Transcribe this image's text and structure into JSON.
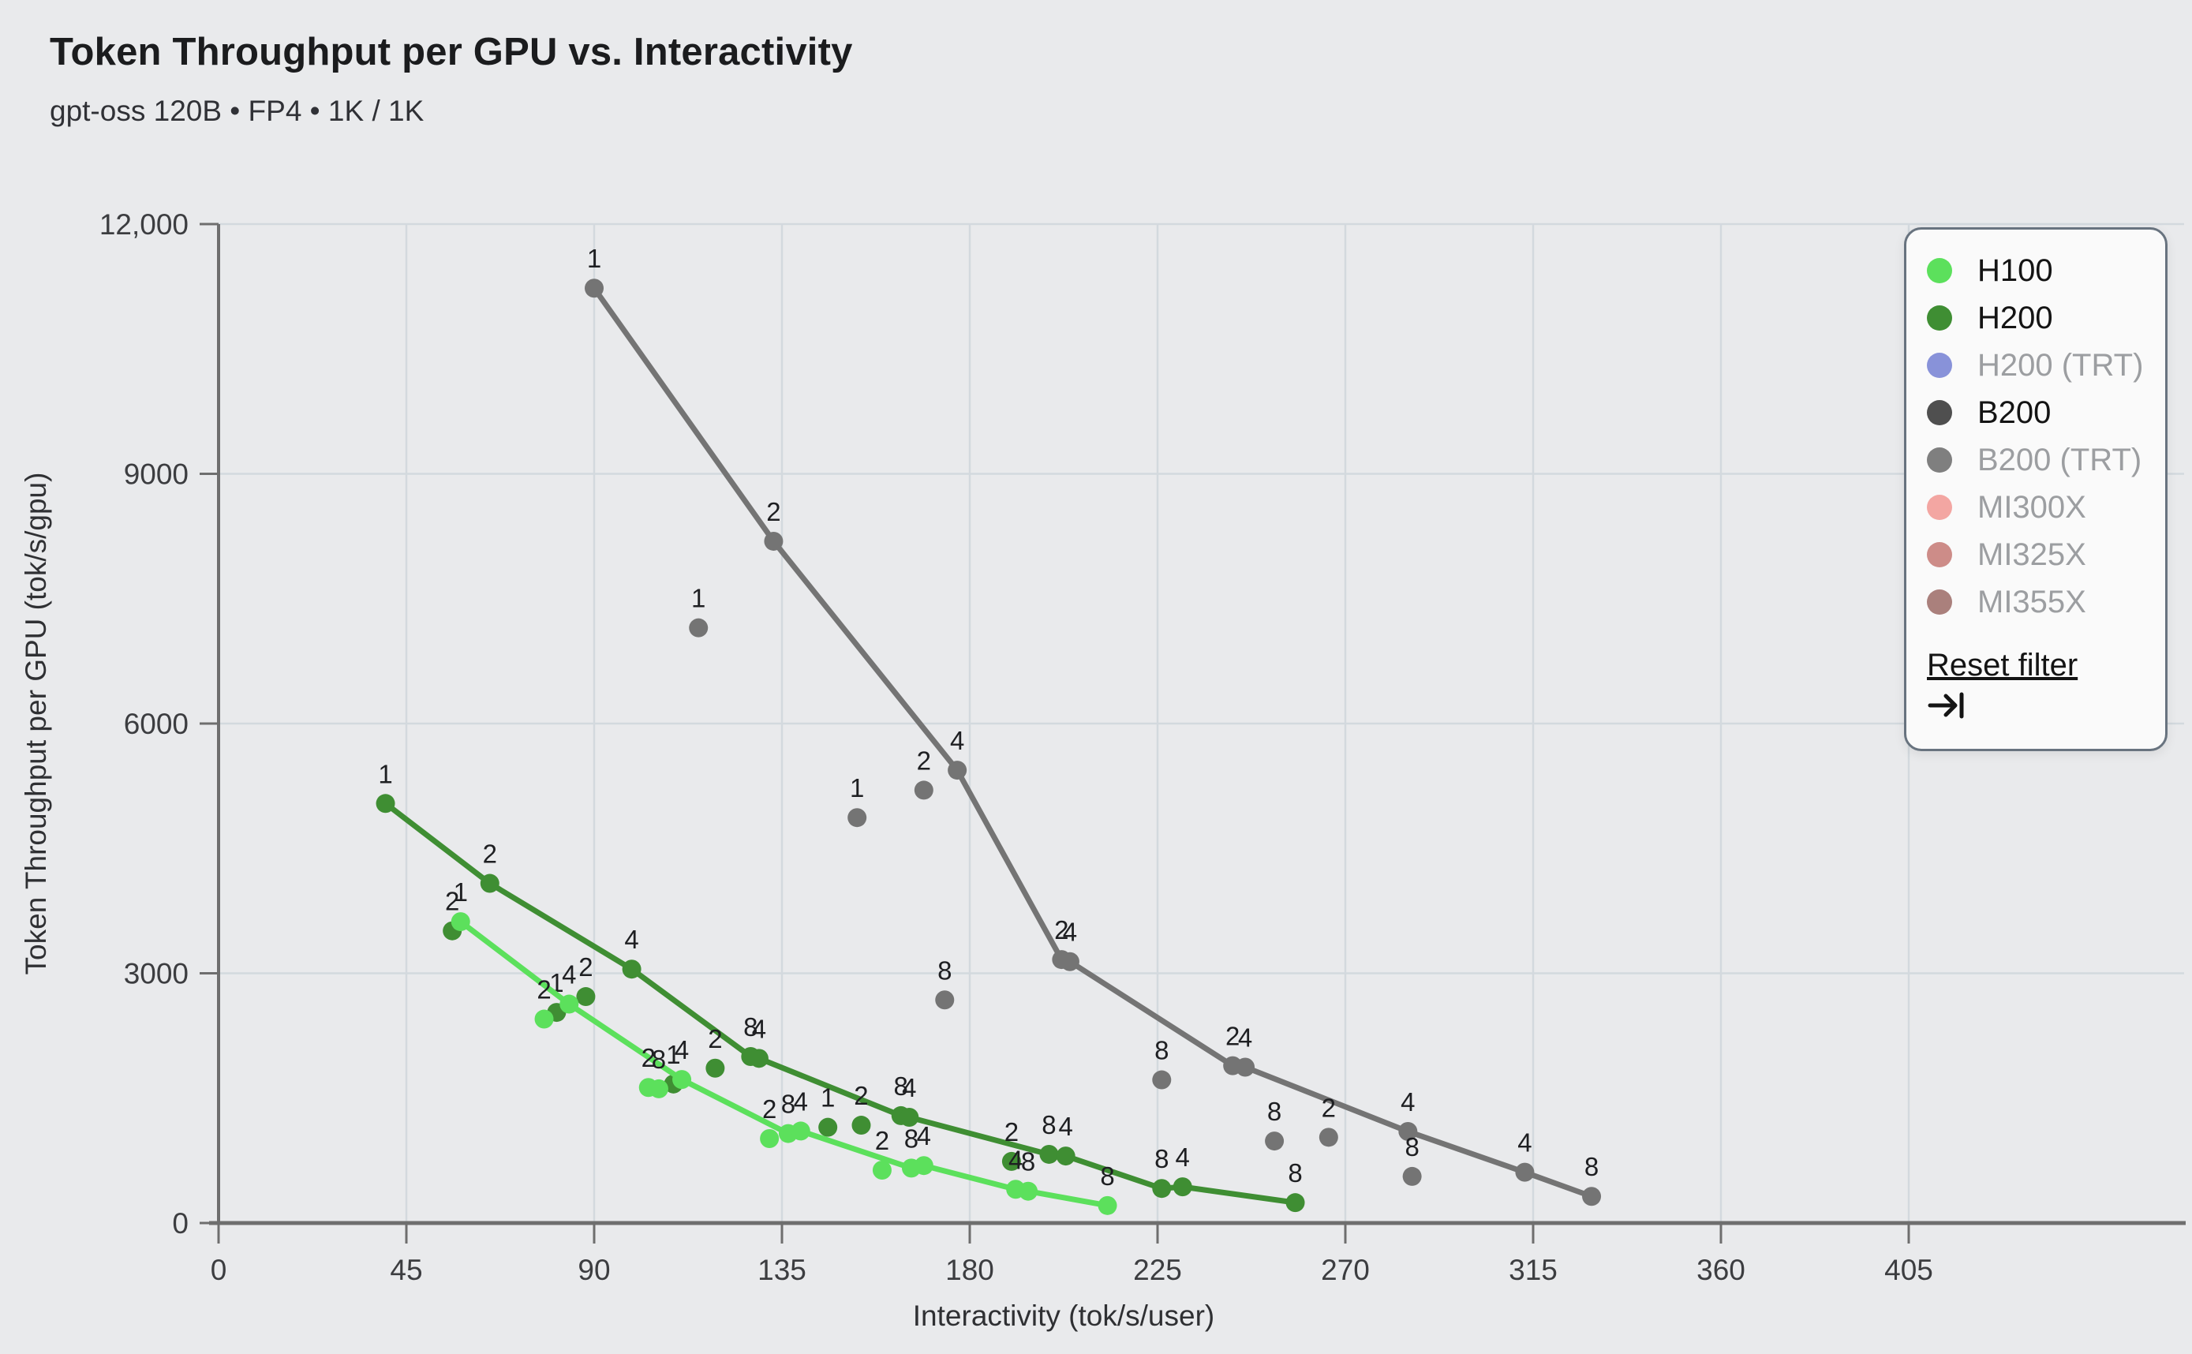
{
  "chart_data": {
    "type": "scatter",
    "title": "Token Throughput per GPU vs. Interactivity",
    "subtitle": "gpt-oss 120B • FP4 • 1K / 1K",
    "xlabel": "Interactivity (tok/s/user)",
    "ylabel": "Token Throughput per GPU (tok/s/gpu)",
    "xlim": [
      0,
      405
    ],
    "ylim": [
      0,
      12000
    ],
    "grid": true,
    "legend_position": "top-right",
    "point_label_meaning": "GPU count shown above each data point",
    "xticks": [
      {
        "v": 0,
        "t": "0"
      },
      {
        "v": 45,
        "t": "45"
      },
      {
        "v": 90,
        "t": "90"
      },
      {
        "v": 135,
        "t": "135"
      },
      {
        "v": 180,
        "t": "180"
      },
      {
        "v": 225,
        "t": "225"
      },
      {
        "v": 270,
        "t": "270"
      },
      {
        "v": 315,
        "t": "315"
      },
      {
        "v": 360,
        "t": "360"
      },
      {
        "v": 405,
        "t": "405"
      }
    ],
    "yticks": [
      {
        "v": 0,
        "t": "0"
      },
      {
        "v": 3000,
        "t": "3000"
      },
      {
        "v": 6000,
        "t": "6000"
      },
      {
        "v": 9000,
        "t": "9000"
      },
      {
        "v": 12000,
        "t": "12,000"
      }
    ],
    "series": [
      {
        "name": "B200",
        "color": "#747474",
        "frontier": [
          [
            90,
            11230,
            "1"
          ],
          [
            133,
            8190,
            "2"
          ],
          [
            177,
            5440,
            "4"
          ],
          [
            202,
            3165,
            "2"
          ],
          [
            204,
            3140,
            "4"
          ],
          [
            243,
            1890,
            "2"
          ],
          [
            246,
            1872,
            "4"
          ],
          [
            285,
            1100,
            "4"
          ],
          [
            313,
            610,
            "4"
          ],
          [
            329,
            320,
            "8"
          ]
        ],
        "scatter": [
          [
            115,
            7150,
            "1"
          ],
          [
            153,
            4870,
            "1"
          ],
          [
            169,
            5200,
            "2"
          ],
          [
            174,
            2680,
            "8"
          ],
          [
            226,
            1720,
            "8"
          ],
          [
            253,
            985,
            "8"
          ],
          [
            266,
            1030,
            "2"
          ],
          [
            286,
            560,
            "8"
          ]
        ]
      },
      {
        "name": "H200",
        "color": "#3f8e33",
        "frontier": [
          [
            40,
            5040,
            "1"
          ],
          [
            65,
            4080,
            "2"
          ],
          [
            99,
            3050,
            "4"
          ],
          [
            127.5,
            2000,
            "8"
          ],
          [
            129.5,
            1978,
            "4"
          ],
          [
            163.5,
            1290,
            "8"
          ],
          [
            165.5,
            1270,
            "4"
          ],
          [
            199,
            825,
            "8"
          ],
          [
            203,
            805,
            "4"
          ],
          [
            226,
            415,
            "8"
          ],
          [
            231,
            435,
            "4"
          ],
          [
            258,
            245,
            "8"
          ]
        ],
        "scatter": [
          [
            56,
            3510,
            "2"
          ],
          [
            81,
            2530,
            "1"
          ],
          [
            88,
            2720,
            "2"
          ],
          [
            109,
            1670,
            "1"
          ],
          [
            119,
            1860,
            "2"
          ],
          [
            146,
            1150,
            "1"
          ],
          [
            154,
            1175,
            "2"
          ],
          [
            190,
            740,
            "2"
          ]
        ]
      },
      {
        "name": "H100",
        "color": "#5ce05c",
        "frontier": [
          [
            58,
            3620,
            "1"
          ],
          [
            84,
            2630,
            "4"
          ],
          [
            111,
            1724,
            "4"
          ],
          [
            136.5,
            1075,
            "8"
          ],
          [
            139.5,
            1105,
            "4"
          ],
          [
            166,
            660,
            "8"
          ],
          [
            169,
            690,
            "4"
          ],
          [
            191,
            405,
            "4"
          ],
          [
            194,
            382,
            "8"
          ],
          [
            213,
            210,
            "8"
          ]
        ],
        "scatter": [
          [
            78,
            2450,
            "2"
          ],
          [
            103,
            1628,
            "2"
          ],
          [
            105.5,
            1612,
            "8"
          ],
          [
            132,
            1014,
            "2"
          ],
          [
            159,
            635,
            "2"
          ]
        ]
      }
    ]
  },
  "legend": {
    "items": [
      {
        "label": "H100",
        "color": "#5ce05c",
        "active": true
      },
      {
        "label": "H200",
        "color": "#3f8e33",
        "active": true
      },
      {
        "label": "H200 (TRT)",
        "color": "#8892d9",
        "active": false
      },
      {
        "label": "B200",
        "color": "#4f4f4f",
        "active": true
      },
      {
        "label": "B200 (TRT)",
        "color": "#7f7f7f",
        "active": false
      },
      {
        "label": "MI300X",
        "color": "#f3a6a2",
        "active": false
      },
      {
        "label": "MI325X",
        "color": "#cd8c88",
        "active": false
      },
      {
        "label": "MI355X",
        "color": "#aa807c",
        "active": false
      }
    ],
    "reset_label": "Reset filter"
  }
}
